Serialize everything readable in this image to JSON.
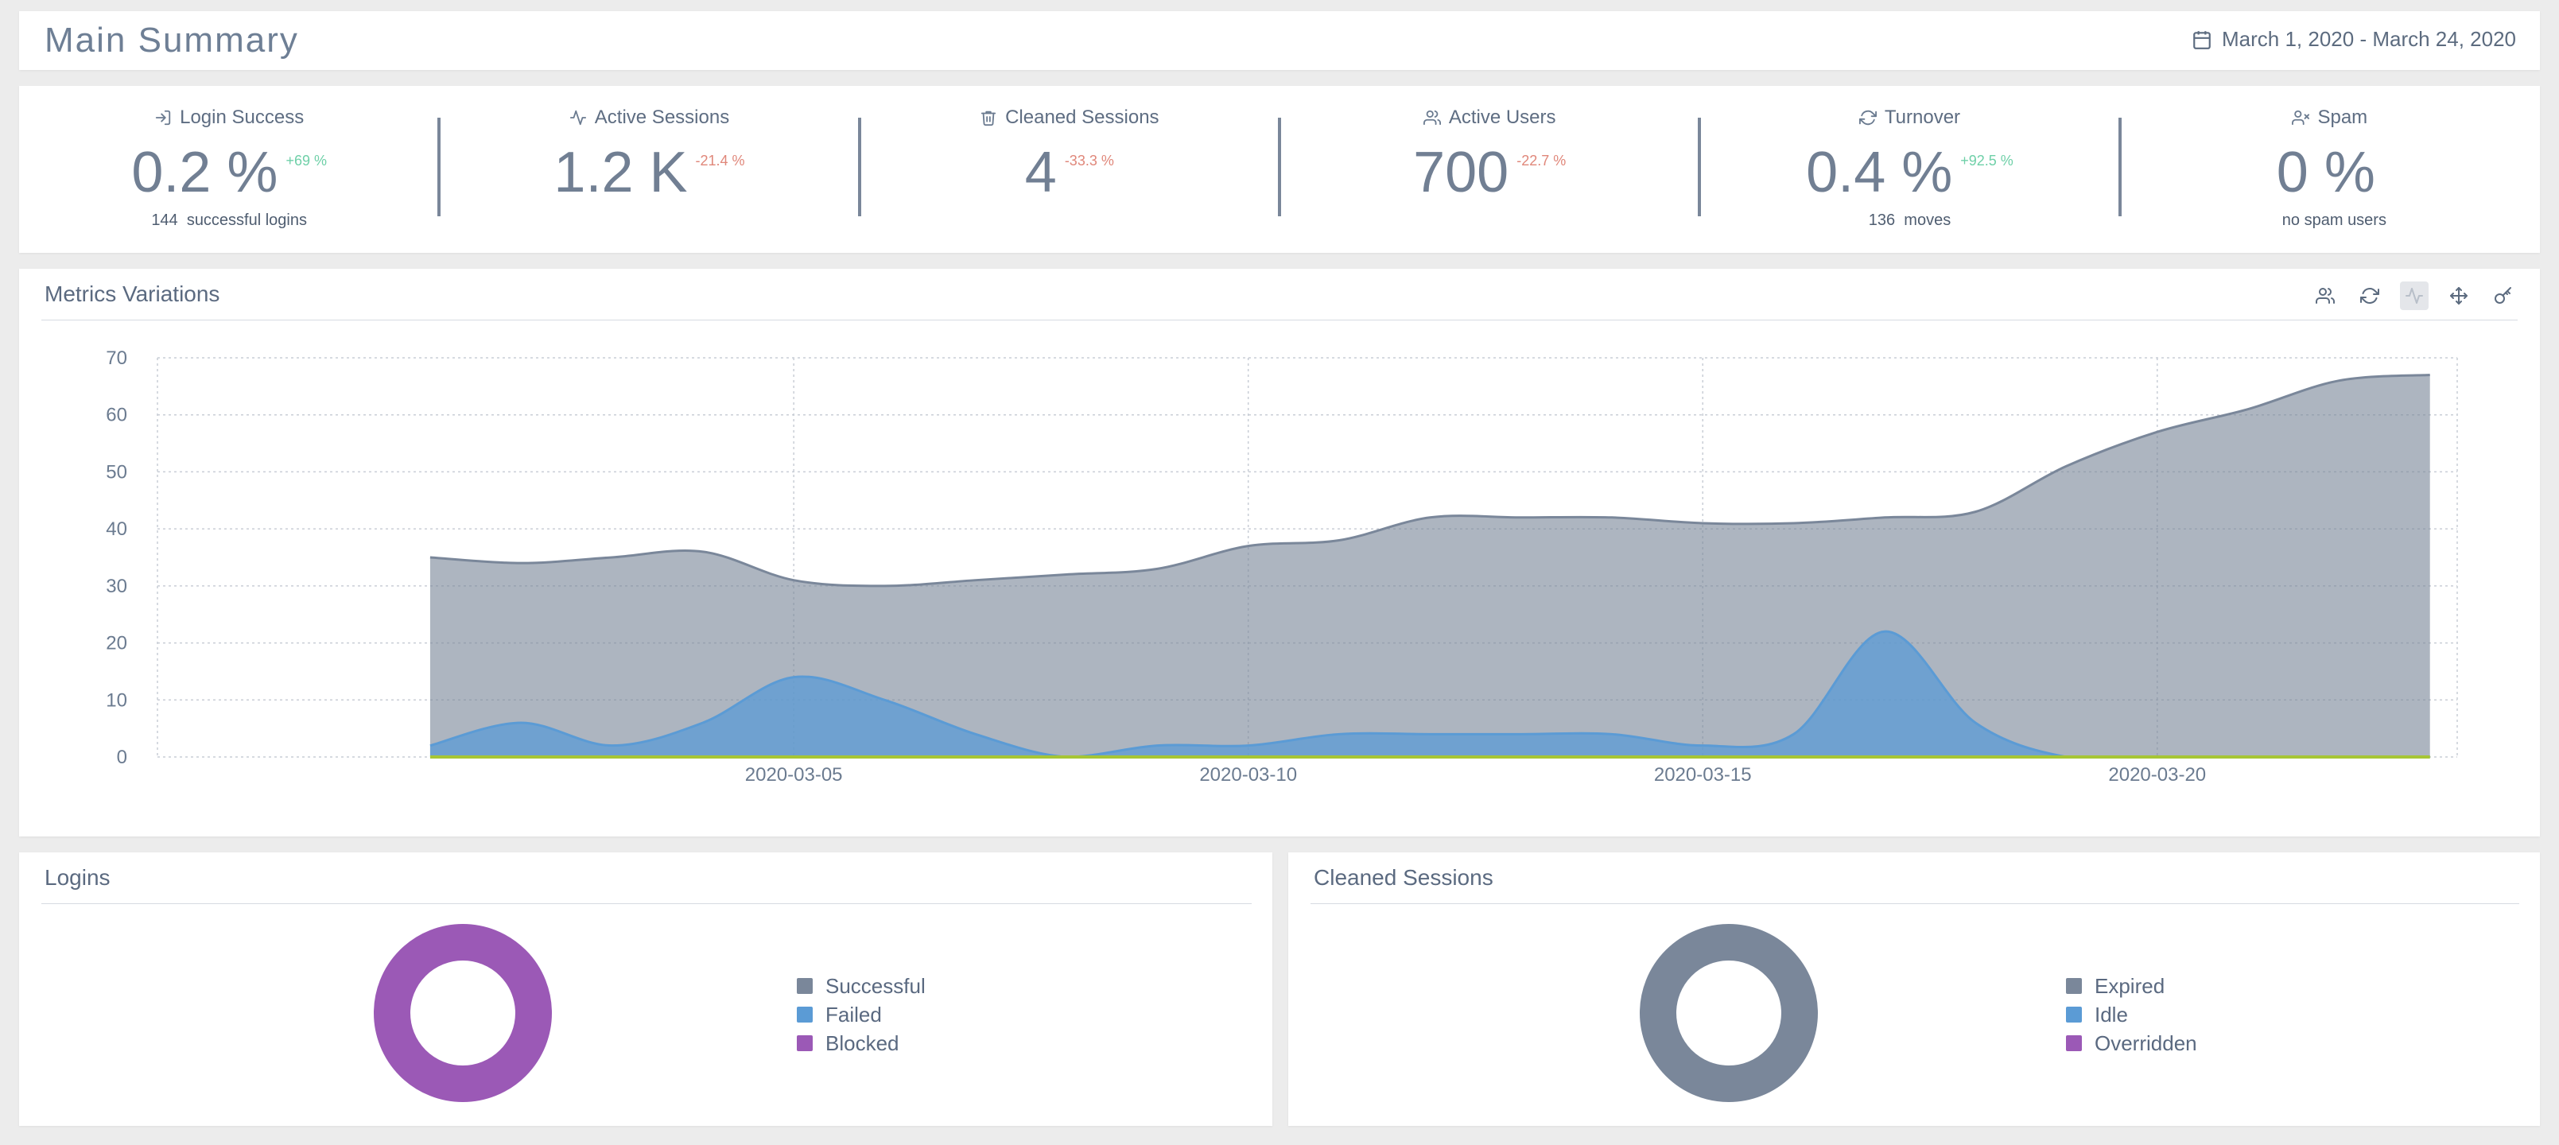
{
  "header": {
    "title": "Main Summary",
    "date_range": "March 1, 2020 - March 24, 2020"
  },
  "kpis": [
    {
      "label": "Login Success",
      "icon": "login-icon",
      "value": "0.2 %",
      "delta": "+69 %",
      "delta_dir": "up",
      "sub_count": "144",
      "sub_text": "successful logins"
    },
    {
      "label": "Active Sessions",
      "icon": "activity-icon",
      "value": "1.2 K",
      "delta": "-21.4 %",
      "delta_dir": "down",
      "sub_count": "",
      "sub_text": ""
    },
    {
      "label": "Cleaned Sessions",
      "icon": "trash-icon",
      "value": "4",
      "delta": "-33.3 %",
      "delta_dir": "down",
      "sub_count": "",
      "sub_text": ""
    },
    {
      "label": "Active Users",
      "icon": "users-icon",
      "value": "700",
      "delta": "-22.7 %",
      "delta_dir": "down",
      "sub_count": "",
      "sub_text": ""
    },
    {
      "label": "Turnover",
      "icon": "refresh-icon",
      "value": "0.4 %",
      "delta": "+92.5 %",
      "delta_dir": "up",
      "sub_count": "136",
      "sub_text": "moves"
    },
    {
      "label": "Spam",
      "icon": "user-x-icon",
      "value": "0 %",
      "delta": "",
      "delta_dir": "",
      "sub_count": "",
      "sub_text": "no spam users"
    }
  ],
  "metrics": {
    "title": "Metrics Variations",
    "toolbar": [
      "users-icon",
      "refresh-icon",
      "activity-icon",
      "move-icon",
      "key-icon"
    ],
    "active_tool": "activity-icon"
  },
  "chart_data": {
    "type": "area",
    "x_start": "2020-03-01",
    "x": [
      "2020-03-01",
      "2020-03-02",
      "2020-03-03",
      "2020-03-04",
      "2020-03-05",
      "2020-03-06",
      "2020-03-07",
      "2020-03-08",
      "2020-03-09",
      "2020-03-10",
      "2020-03-11",
      "2020-03-12",
      "2020-03-13",
      "2020-03-14",
      "2020-03-15",
      "2020-03-16",
      "2020-03-17",
      "2020-03-18",
      "2020-03-19",
      "2020-03-20",
      "2020-03-21",
      "2020-03-22",
      "2020-03-23"
    ],
    "x_ticks": [
      "2020-03-05",
      "2020-03-10",
      "2020-03-15",
      "2020-03-20"
    ],
    "ylim": [
      0,
      70
    ],
    "y_ticks": [
      0,
      10,
      20,
      30,
      40,
      50,
      60,
      70
    ],
    "grid": true,
    "series": [
      {
        "color": "#7a879a",
        "values": [
          35,
          34,
          35,
          36,
          31,
          30,
          31,
          32,
          33,
          37,
          38,
          42,
          42,
          42,
          41,
          41,
          42,
          43,
          51,
          57,
          61,
          66,
          67
        ]
      },
      {
        "color": "#5b9bd5",
        "values": [
          2,
          6,
          2,
          6,
          14,
          10,
          4,
          0,
          2,
          2,
          4,
          4,
          4,
          4,
          2,
          4,
          22,
          6,
          0,
          0,
          0,
          0,
          0
        ]
      },
      {
        "color": "#a6c535",
        "values": [
          0,
          0,
          0,
          0,
          0,
          0,
          0,
          0,
          0,
          0,
          0,
          0,
          0,
          0,
          0,
          0,
          0,
          0,
          0,
          0,
          0,
          0,
          0
        ]
      }
    ]
  },
  "logins": {
    "title": "Logins",
    "legend": [
      {
        "label": "Successful",
        "color": "#7a879a"
      },
      {
        "label": "Failed",
        "color": "#5b9bd5"
      },
      {
        "label": "Blocked",
        "color": "#9b59b6"
      }
    ],
    "slices": [
      0,
      0,
      100
    ]
  },
  "cleaned": {
    "title": "Cleaned Sessions",
    "legend": [
      {
        "label": "Expired",
        "color": "#7a879a"
      },
      {
        "label": "Idle",
        "color": "#5b9bd5"
      },
      {
        "label": "Overridden",
        "color": "#9b59b6"
      }
    ],
    "slices": [
      100,
      0,
      0
    ]
  }
}
